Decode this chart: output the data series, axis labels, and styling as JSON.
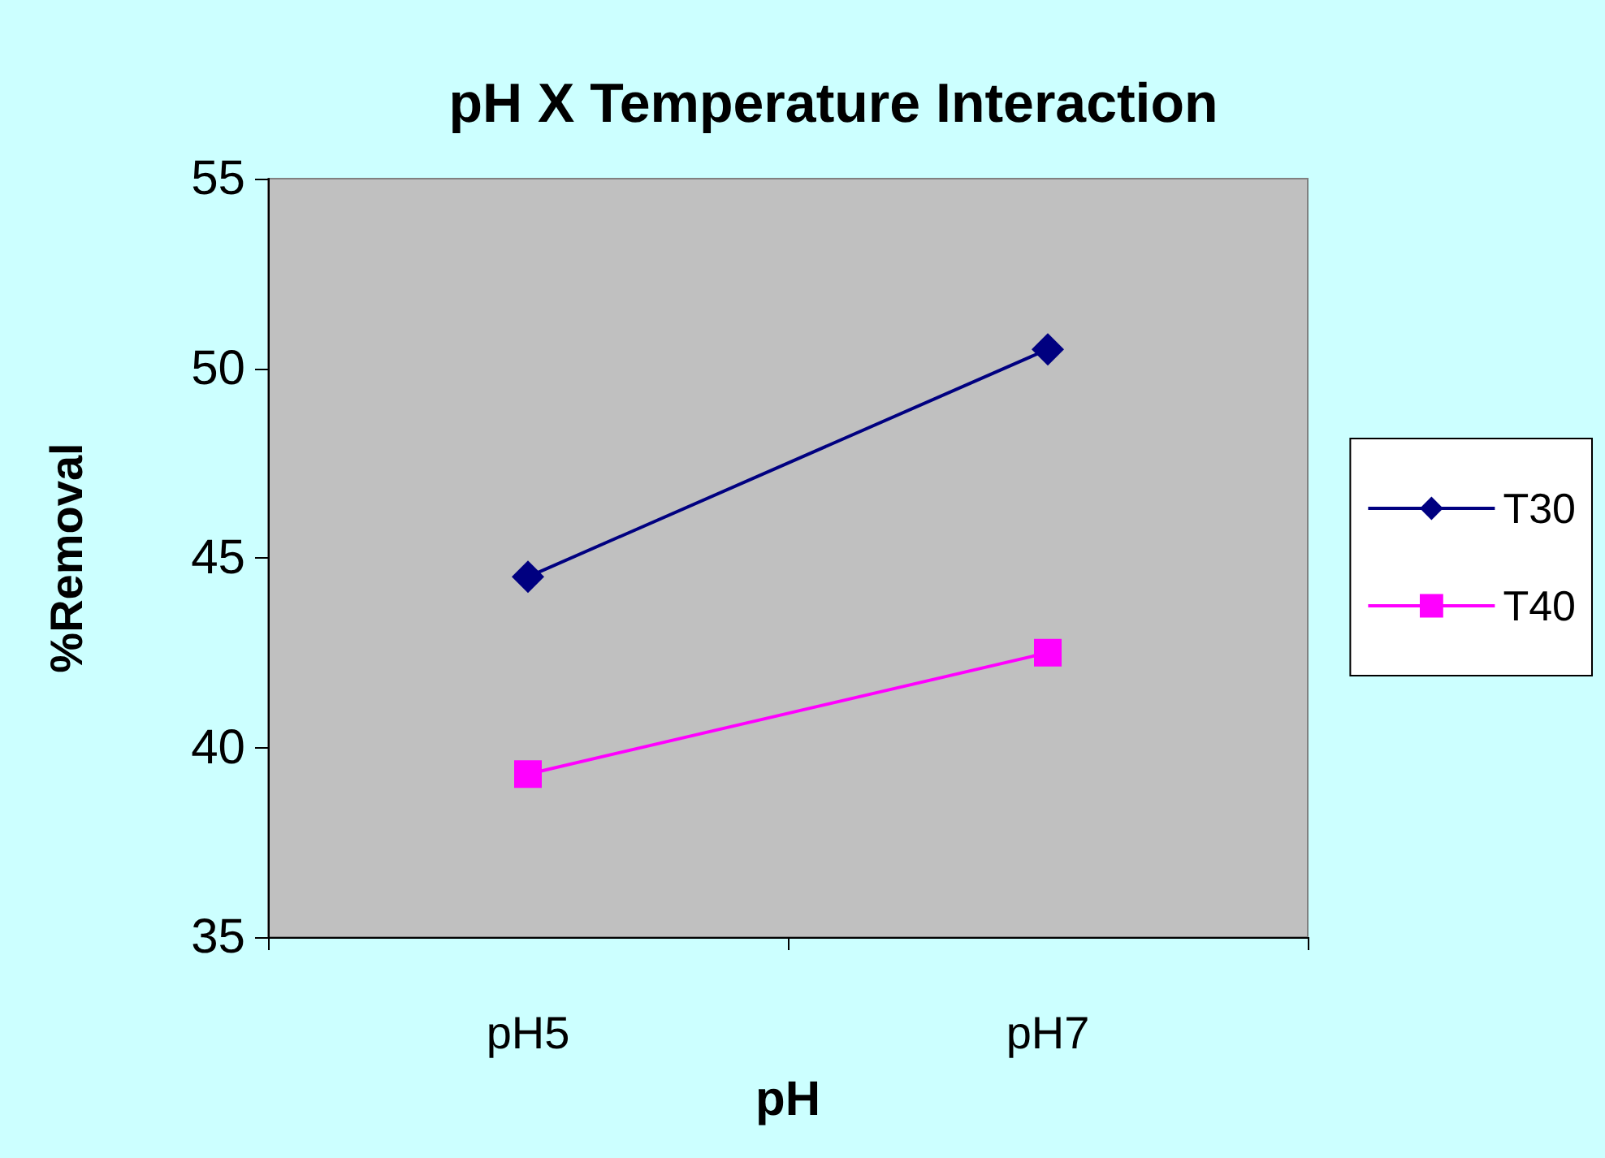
{
  "chart_data": {
    "type": "line",
    "title": "pH X Temperature Interaction",
    "xlabel": "pH",
    "ylabel": "%Removal",
    "categories": [
      "pH5",
      "pH7"
    ],
    "series": [
      {
        "name": "T30",
        "color": "#000080",
        "marker": "diamond",
        "values": [
          44.5,
          50.5
        ]
      },
      {
        "name": "T40",
        "color": "#ff00ff",
        "marker": "square",
        "values": [
          39.3,
          42.5
        ]
      }
    ],
    "ylim": [
      35,
      55
    ],
    "yticks": [
      35,
      40,
      45,
      50,
      55
    ],
    "grid": false,
    "legend": "right",
    "line_style": "solid"
  }
}
